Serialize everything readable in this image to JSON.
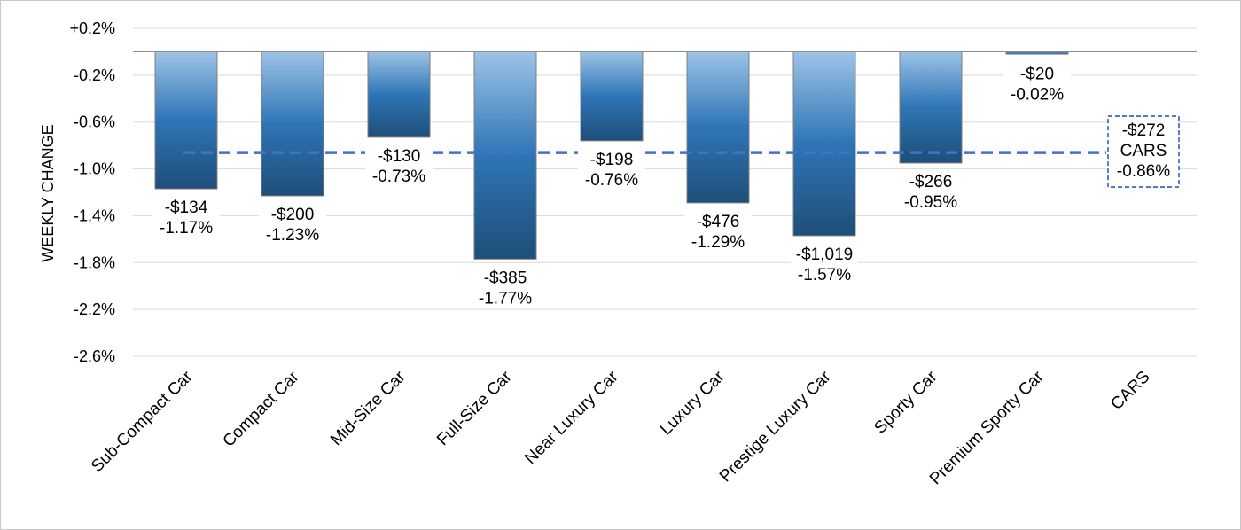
{
  "chart_data": {
    "type": "bar",
    "ylabel": "WEEKLY CHANGE",
    "ylim": [
      -2.6,
      0.2
    ],
    "y_ticks": [
      0.2,
      -0.2,
      -0.6,
      -1.0,
      -1.4,
      -1.8,
      -2.2,
      -2.6
    ],
    "y_tick_labels": [
      "+0.2%",
      "-0.2%",
      "-0.6%",
      "-1.0%",
      "-1.4%",
      "-1.8%",
      "-2.2%",
      "-2.6%"
    ],
    "grid": true,
    "categories": [
      "Sub-Compact Car",
      "Compact Car",
      "Mid-Size Car",
      "Full-Size Car",
      "Near Luxury Car",
      "Luxury Car",
      "Prestige Luxury Car",
      "Sporty Car",
      "Premium Sporty Car",
      "CARS"
    ],
    "values": [
      -1.17,
      -1.23,
      -0.73,
      -1.77,
      -0.76,
      -1.29,
      -1.57,
      -0.95,
      -0.02,
      null
    ],
    "dollar_labels": [
      "-$134",
      "-$200",
      "-$130",
      "-$385",
      "-$198",
      "-$476",
      "-$1,019",
      "-$266",
      "-$20",
      ""
    ],
    "percent_labels": [
      "-1.17%",
      "-1.23%",
      "-0.73%",
      "-1.77%",
      "-0.76%",
      "-1.29%",
      "-1.57%",
      "-0.95%",
      "-0.02%",
      ""
    ],
    "reference_line": {
      "value": -0.86,
      "label_lines": [
        "-$272",
        "CARS",
        "-0.86%"
      ]
    },
    "colors": {
      "bar_top": "#9dc3e6",
      "bar_mid": "#2e75b6",
      "bar_bottom": "#1f4e79",
      "bar_edge": "#7f7f7f",
      "reference_line": "#4472c4",
      "grid": "#d9d9d9",
      "axis": "#8c8c8c"
    }
  }
}
